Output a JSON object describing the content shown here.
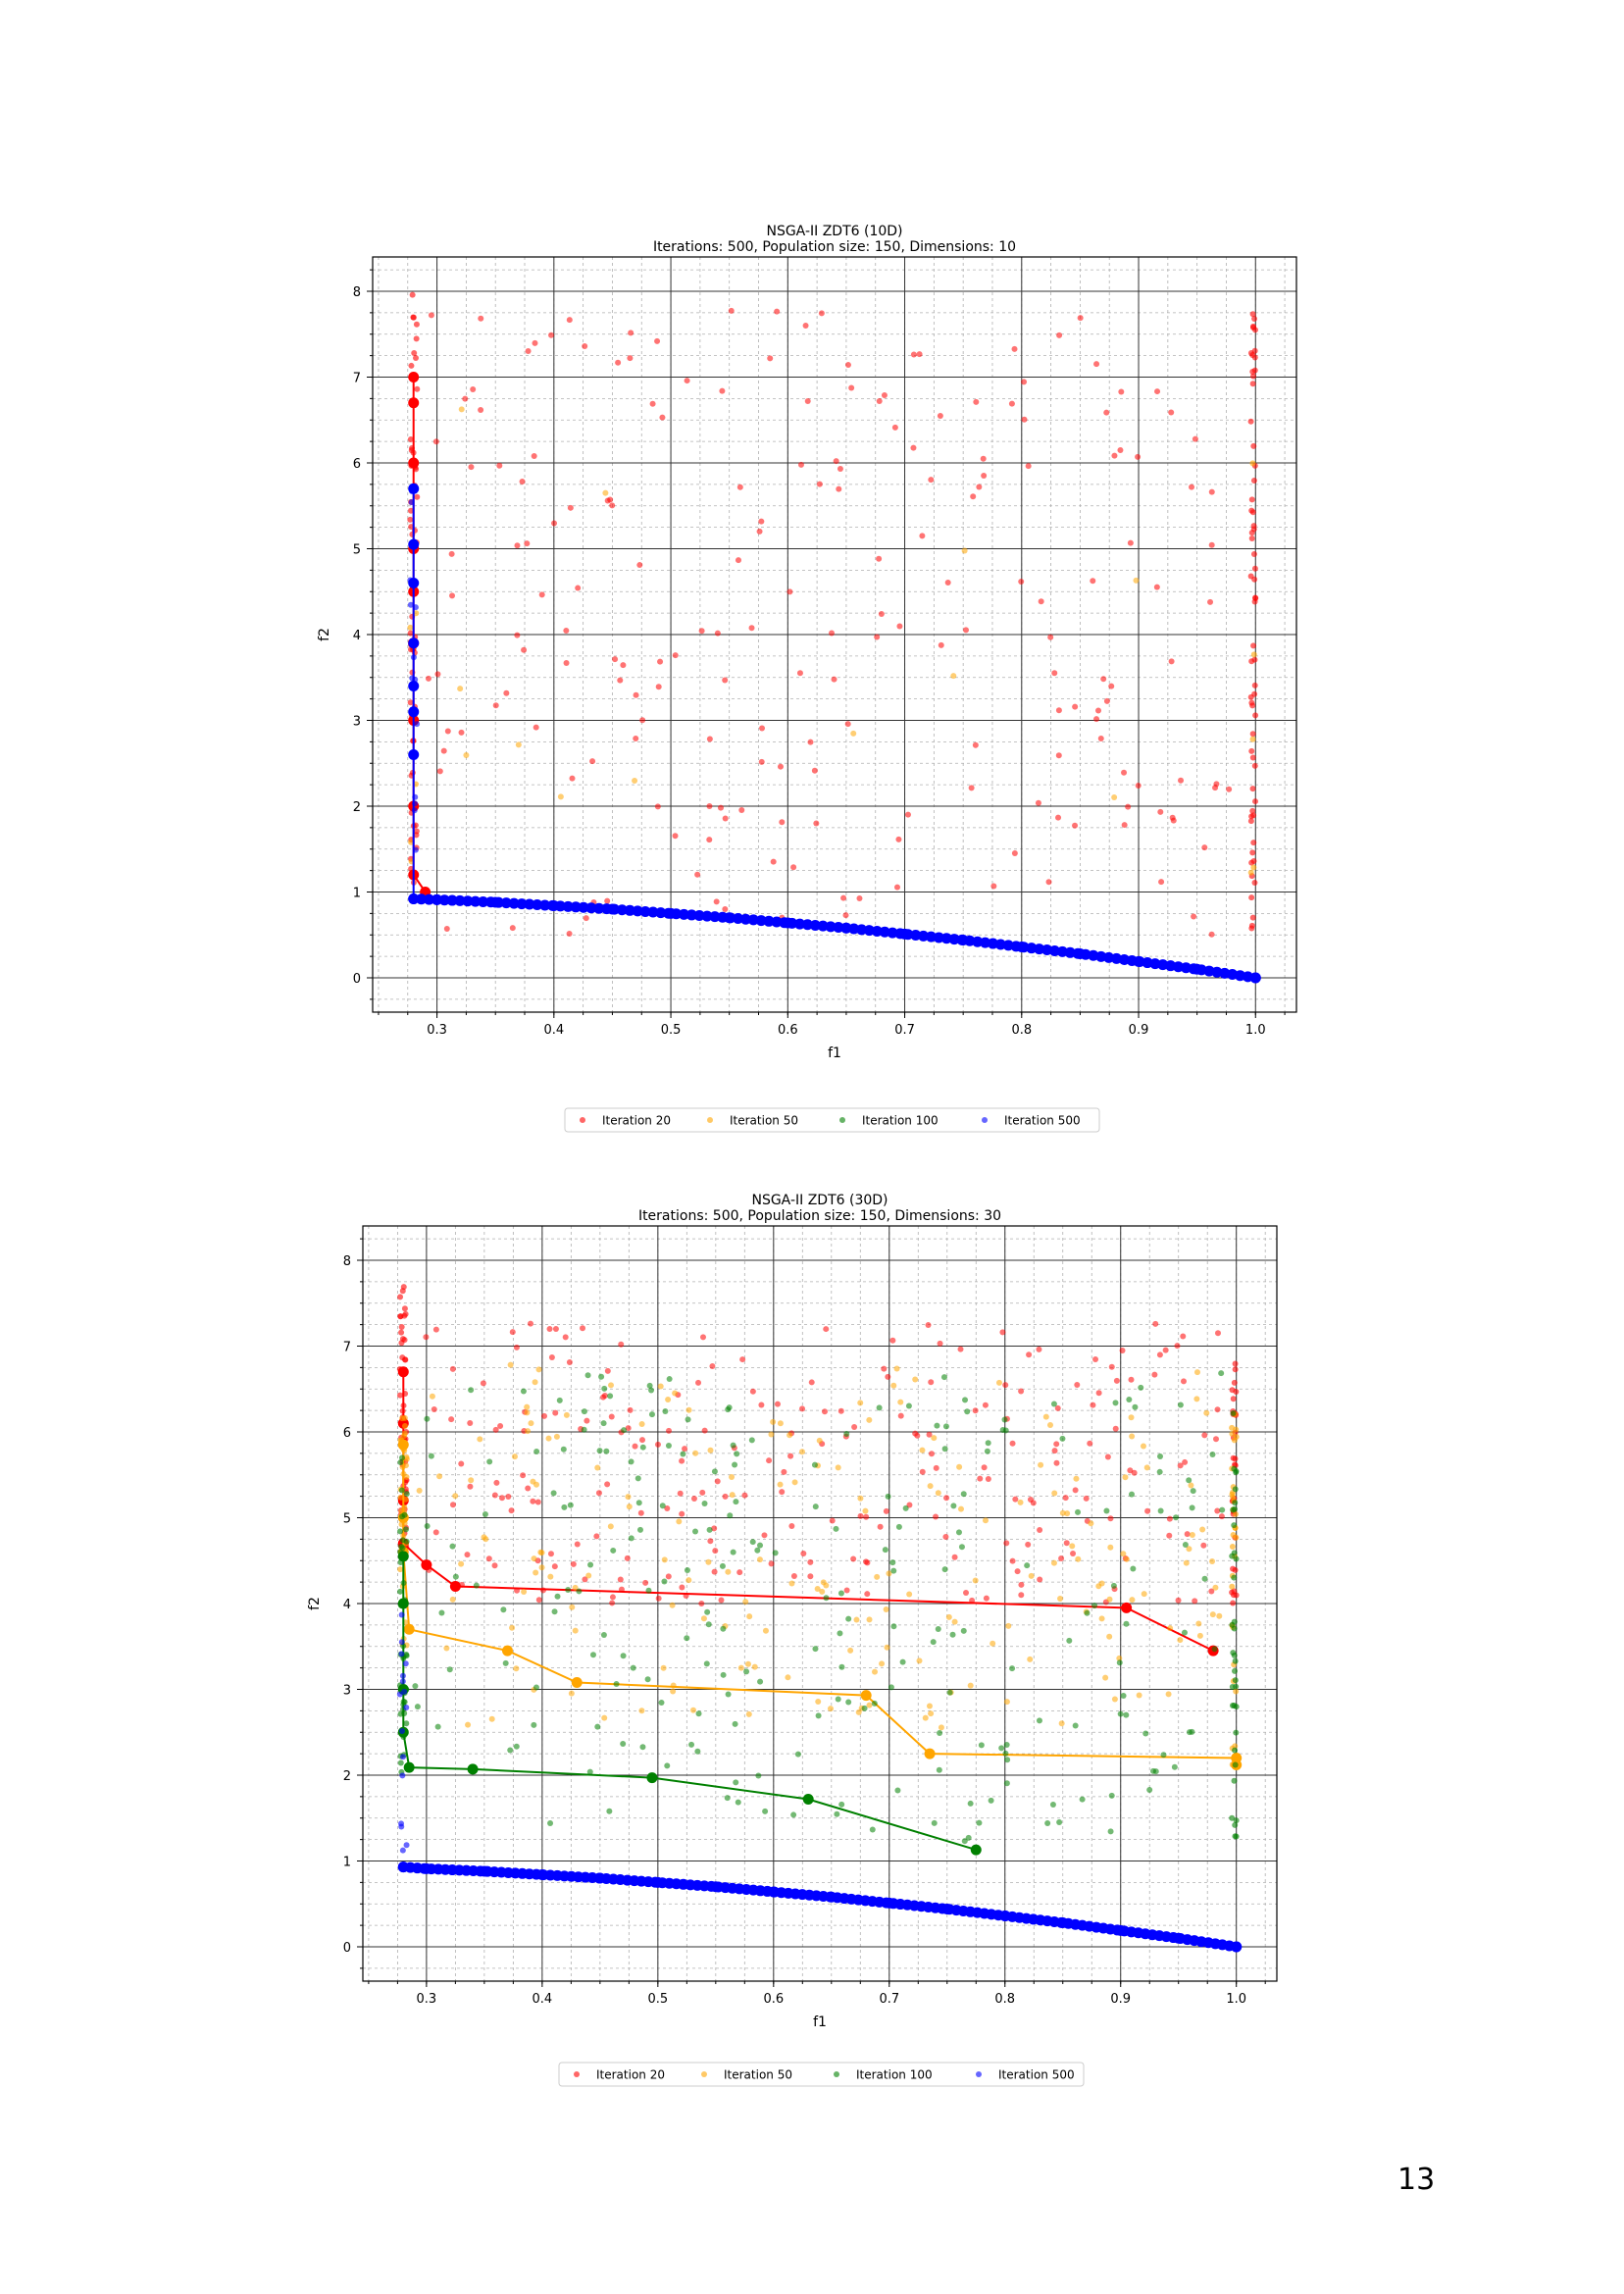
{
  "page": {
    "number": "13"
  },
  "colors": {
    "iter20": "#ff0000",
    "iter50": "#ffa500",
    "iter100": "#008000",
    "iter500": "#0000ff"
  },
  "chart_data": [
    {
      "type": "scatter",
      "title": "NSGA-II ZDT6 (10D)",
      "subtitle": "Iterations: 500, Population size: 150, Dimensions: 10",
      "xlabel": "f1",
      "ylabel": "f2",
      "xlim": [
        0.245,
        1.035
      ],
      "ylim": [
        -0.4,
        8.4
      ],
      "xticks": [
        "0.3",
        "0.4",
        "0.5",
        "0.6",
        "0.7",
        "0.8",
        "0.9",
        "1.0"
      ],
      "yticks": [
        "0",
        "1",
        "2",
        "3",
        "4",
        "5",
        "6",
        "7",
        "8"
      ],
      "grid": "major and minor",
      "legend_placement": "below",
      "seed": 7,
      "series": [
        {
          "name": "Iteration 20",
          "color": "#ff0000",
          "scatter_count": 200,
          "scatter_region": [
            0.29,
            0.98,
            0.5,
            7.8
          ],
          "left_column": {
            "x": 0.28,
            "y_from": 1.0,
            "y_to": 8.0,
            "count": 55
          },
          "right_column": {
            "x": 1.0,
            "y_from": 0.5,
            "y_to": 7.8,
            "count": 60
          },
          "front": [
            [
              0.28,
              7.0
            ],
            [
              0.28,
              6.7
            ],
            [
              0.28,
              6.0
            ],
            [
              0.28,
              5.0
            ],
            [
              0.28,
              4.5
            ],
            [
              0.28,
              3.9
            ],
            [
              0.28,
              3.0
            ],
            [
              0.28,
              2.0
            ],
            [
              0.28,
              1.2
            ],
            [
              0.29,
              1.0
            ]
          ]
        },
        {
          "name": "Iteration 50",
          "color": "#ffa500",
          "scatter_count": 12,
          "scatter_region": [
            0.3,
            1.0,
            1.5,
            6.8
          ],
          "left_column": {
            "x": 0.28,
            "y_from": 1.0,
            "y_to": 6.0,
            "count": 5
          },
          "right_column": {
            "x": 1.0,
            "y_from": 1.0,
            "y_to": 6.0,
            "count": 5
          },
          "front": []
        },
        {
          "name": "Iteration 100",
          "color": "#008000",
          "scatter_count": 0,
          "scatter_region": [
            0.3,
            1.0,
            1.0,
            6.0
          ],
          "left_column": {
            "x": 0.28,
            "y_from": 1.0,
            "y_to": 4.0,
            "count": 0
          },
          "right_column": {
            "x": 1.0,
            "y_from": 1.0,
            "y_to": 4.0,
            "count": 0
          },
          "front": []
        },
        {
          "name": "Iteration 500",
          "color": "#0000ff",
          "scatter_count": 0,
          "scatter_region": [
            0.3,
            1.0,
            1.0,
            2.0
          ],
          "left_column": {
            "x": 0.28,
            "y_from": 1.3,
            "y_to": 5.7,
            "count": 14
          },
          "right_column": {
            "x": 1.0,
            "y_from": 0.0,
            "y_to": 0.1,
            "count": 0
          },
          "front": [
            [
              0.28,
              5.7
            ],
            [
              0.28,
              5.05
            ],
            [
              0.28,
              4.6
            ],
            [
              0.28,
              3.9
            ],
            [
              0.28,
              3.4
            ],
            [
              0.28,
              3.1
            ],
            [
              0.28,
              2.6
            ],
            [
              0.28,
              0.92
            ],
            [
              0.3,
              0.91
            ],
            [
              0.35,
              0.88
            ],
            [
              0.4,
              0.84
            ],
            [
              0.45,
              0.8
            ],
            [
              0.5,
              0.75
            ],
            [
              0.55,
              0.7
            ],
            [
              0.6,
              0.64
            ],
            [
              0.65,
              0.58
            ],
            [
              0.7,
              0.51
            ],
            [
              0.75,
              0.44
            ],
            [
              0.8,
              0.36
            ],
            [
              0.85,
              0.28
            ],
            [
              0.9,
              0.19
            ],
            [
              0.95,
              0.1
            ],
            [
              1.0,
              0.0
            ]
          ],
          "front_dots": 110
        }
      ]
    },
    {
      "type": "scatter",
      "title": "NSGA-II ZDT6 (30D)",
      "subtitle": "Iterations: 500, Population size: 150, Dimensions: 30",
      "xlabel": "f1",
      "ylabel": "f2",
      "xlim": [
        0.245,
        1.035
      ],
      "ylim": [
        -0.4,
        8.4
      ],
      "xticks": [
        "0.3",
        "0.4",
        "0.5",
        "0.6",
        "0.7",
        "0.8",
        "0.9",
        "1.0"
      ],
      "yticks": [
        "0",
        "1",
        "2",
        "3",
        "4",
        "5",
        "6",
        "7",
        "8"
      ],
      "grid": "major and minor",
      "legend_placement": "below",
      "seed": 19,
      "series": [
        {
          "name": "Iteration 20",
          "color": "#ff0000",
          "scatter_count": 230,
          "scatter_region": [
            0.29,
            0.99,
            4.0,
            7.3
          ],
          "left_column": {
            "x": 0.28,
            "y_from": 4.5,
            "y_to": 8.0,
            "count": 50
          },
          "right_column": {
            "x": 1.0,
            "y_from": 4.0,
            "y_to": 7.2,
            "count": 30
          },
          "front": [
            [
              0.28,
              6.7
            ],
            [
              0.28,
              6.1
            ],
            [
              0.28,
              5.2
            ],
            [
              0.28,
              4.7
            ],
            [
              0.3,
              4.45
            ],
            [
              0.325,
              4.2
            ],
            [
              0.905,
              3.95
            ],
            [
              0.98,
              3.45
            ]
          ]
        },
        {
          "name": "Iteration 50",
          "color": "#ffa500",
          "scatter_count": 190,
          "scatter_region": [
            0.29,
            0.99,
            2.5,
            6.8
          ],
          "left_column": {
            "x": 0.28,
            "y_from": 3.5,
            "y_to": 6.2,
            "count": 35
          },
          "right_column": {
            "x": 1.0,
            "y_from": 2.1,
            "y_to": 6.6,
            "count": 30
          },
          "front": [
            [
              0.28,
              5.85
            ],
            [
              0.28,
              5.0
            ],
            [
              0.28,
              4.6
            ],
            [
              0.285,
              3.7
            ],
            [
              0.37,
              3.45
            ],
            [
              0.43,
              3.08
            ],
            [
              0.68,
              2.93
            ],
            [
              0.735,
              2.25
            ],
            [
              1.0,
              2.2
            ],
            [
              1.0,
              2.12
            ]
          ]
        },
        {
          "name": "Iteration 100",
          "color": "#008000",
          "scatter_count": 230,
          "scatter_region": [
            0.29,
            0.99,
            1.2,
            6.7
          ],
          "left_column": {
            "x": 0.28,
            "y_from": 2.0,
            "y_to": 6.0,
            "count": 40
          },
          "right_column": {
            "x": 1.0,
            "y_from": 1.2,
            "y_to": 6.3,
            "count": 35
          },
          "front": [
            [
              0.28,
              4.55
            ],
            [
              0.28,
              4.0
            ],
            [
              0.28,
              3.0
            ],
            [
              0.28,
              2.5
            ],
            [
              0.285,
              2.09
            ],
            [
              0.34,
              2.07
            ],
            [
              0.495,
              1.97
            ],
            [
              0.63,
              1.72
            ],
            [
              0.775,
              1.13
            ]
          ]
        },
        {
          "name": "Iteration 500",
          "color": "#0000ff",
          "scatter_count": 0,
          "scatter_region": [
            0.3,
            1.0,
            1.0,
            2.0
          ],
          "left_column": {
            "x": 0.28,
            "y_from": 1.0,
            "y_to": 3.9,
            "count": 16
          },
          "right_column": {
            "x": 1.0,
            "y_from": 0.0,
            "y_to": 0.1,
            "count": 0
          },
          "front": [
            [
              0.28,
              0.93
            ],
            [
              0.3,
              0.91
            ],
            [
              0.35,
              0.88
            ],
            [
              0.4,
              0.84
            ],
            [
              0.45,
              0.8
            ],
            [
              0.5,
              0.75
            ],
            [
              0.55,
              0.7
            ],
            [
              0.6,
              0.64
            ],
            [
              0.65,
              0.58
            ],
            [
              0.7,
              0.51
            ],
            [
              0.75,
              0.44
            ],
            [
              0.8,
              0.36
            ],
            [
              0.85,
              0.28
            ],
            [
              0.9,
              0.19
            ],
            [
              0.95,
              0.1
            ],
            [
              1.0,
              0.0
            ]
          ],
          "front_dots": 120
        }
      ]
    }
  ]
}
